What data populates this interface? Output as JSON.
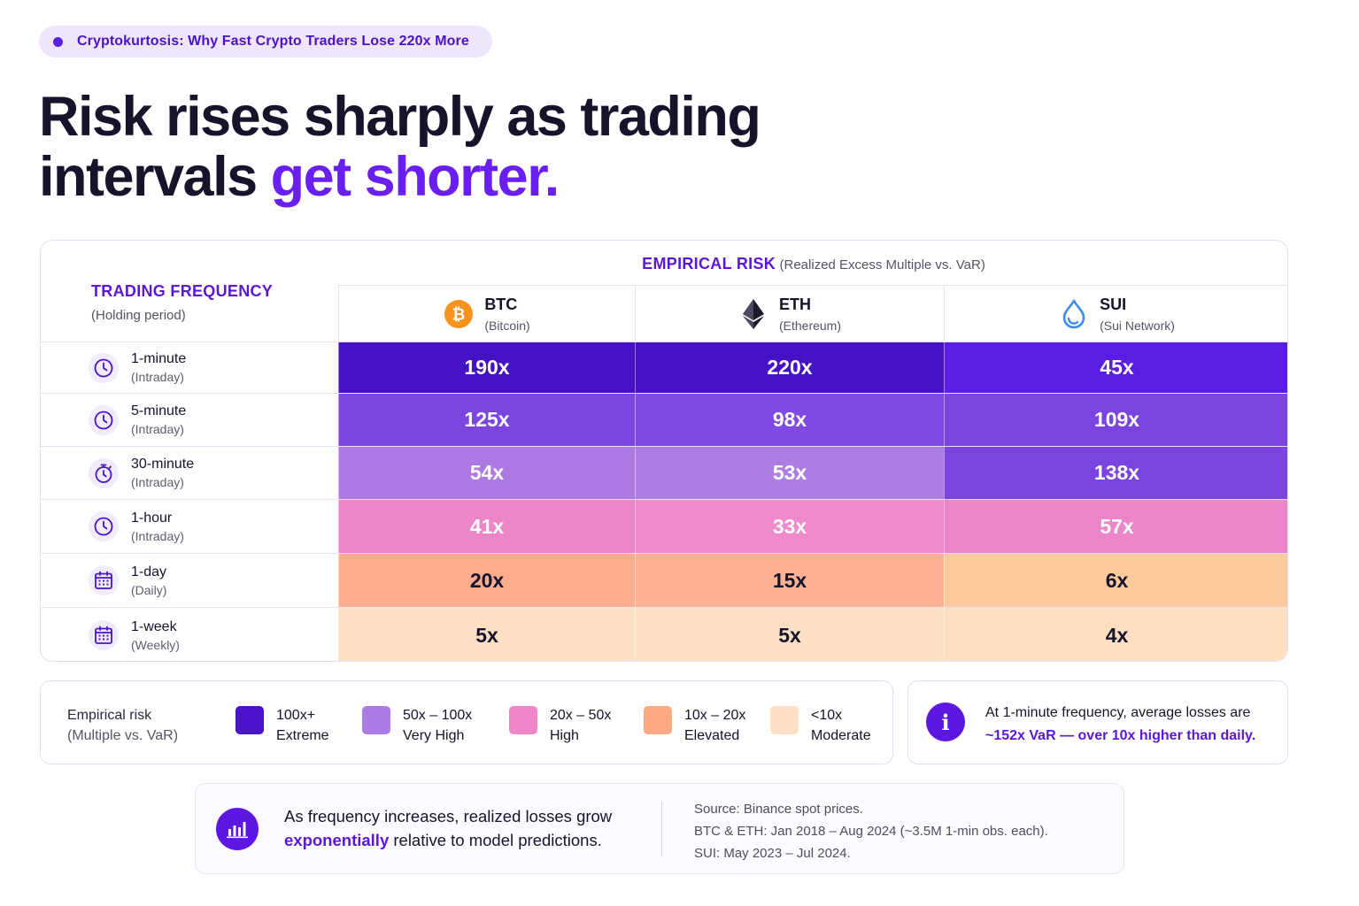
{
  "pill": {
    "label": "Cryptokurtosis: Why Fast Crypto Traders Lose 220x More"
  },
  "headline": {
    "line1": "Risk rises sharply as trading",
    "line2_plain": "intervals",
    "line2_accent": "get shorter."
  },
  "table": {
    "freq_title": "TRADING FREQUENCY",
    "freq_sub": "(Holding period)",
    "risk_title": "EMPIRICAL RISK",
    "risk_sub": "(Realized Excess Multiple vs. VaR)",
    "coins": [
      {
        "symbol": "BTC",
        "name": "(Bitcoin)",
        "icon": "bitcoin-icon",
        "color": "#f7931a"
      },
      {
        "symbol": "ETH",
        "name": "(Ethereum)",
        "icon": "ethereum-icon",
        "color": "#1c1b2a"
      },
      {
        "symbol": "SUI",
        "name": "(Sui Network)",
        "icon": "sui-drop-icon",
        "color": "#3d8bf2"
      }
    ],
    "rows": [
      {
        "name": "1-minute",
        "sub": "(Intraday)",
        "icon": "clock-icon",
        "cells": [
          {
            "value": "190x",
            "bg": "#4412c4",
            "fg": "#ffffff"
          },
          {
            "value": "220x",
            "bg": "#4412c4",
            "fg": "#ffffff"
          },
          {
            "value": "45x",
            "bg": "#5a1de2",
            "fg": "#ffffff"
          }
        ]
      },
      {
        "name": "5-minute",
        "sub": "(Intraday)",
        "icon": "clock-icon",
        "cells": [
          {
            "value": "125x",
            "bg": "#7b45e0",
            "fg": "#ffffff"
          },
          {
            "value": "98x",
            "bg": "#7e4ae1",
            "fg": "#ffffff"
          },
          {
            "value": "109x",
            "bg": "#7a45df",
            "fg": "#ffffff"
          }
        ]
      },
      {
        "name": "30-minute",
        "sub": "(Intraday)",
        "icon": "stopwatch-icon",
        "cells": [
          {
            "value": "54x",
            "bg": "#ac7ae2",
            "fg": "#ffffff"
          },
          {
            "value": "53x",
            "bg": "#ae7de2",
            "fg": "#ffffff"
          },
          {
            "value": "138x",
            "bg": "#7a45df",
            "fg": "#ffffff"
          }
        ]
      },
      {
        "name": "1-hour",
        "sub": "(Intraday)",
        "icon": "clock-icon",
        "cells": [
          {
            "value": "41x",
            "bg": "#ec86c8",
            "fg": "#ffffff"
          },
          {
            "value": "33x",
            "bg": "#ef8bcb",
            "fg": "#ffffff"
          },
          {
            "value": "57x",
            "bg": "#ec86c8",
            "fg": "#ffffff"
          }
        ]
      },
      {
        "name": "1-day",
        "sub": "(Daily)",
        "icon": "calendar-icon",
        "cells": [
          {
            "value": "20x",
            "bg": "#fdac8e",
            "fg": "#16142b"
          },
          {
            "value": "15x",
            "bg": "#feb294",
            "fg": "#16142b"
          },
          {
            "value": "6x",
            "bg": "#fdca9e",
            "fg": "#16142b"
          }
        ]
      },
      {
        "name": "1-week",
        "sub": "(Weekly)",
        "icon": "calendar-icon",
        "cells": [
          {
            "value": "5x",
            "bg": "#fee0c4",
            "fg": "#16142b"
          },
          {
            "value": "5x",
            "bg": "#fee0c4",
            "fg": "#16142b"
          },
          {
            "value": "4x",
            "bg": "#fedfc2",
            "fg": "#16142b"
          }
        ]
      }
    ]
  },
  "legend": {
    "label": "Empirical risk",
    "label_sub": "(Multiple vs. VaR)",
    "items": [
      {
        "range": "100x+",
        "tier": "Extreme",
        "color": "#4a12c9"
      },
      {
        "range": "50x – 100x",
        "tier": "Very High",
        "color": "#ad7be4"
      },
      {
        "range": "20x – 50x",
        "tier": "High",
        "color": "#ee86c8"
      },
      {
        "range": "10x – 20x",
        "tier": "Elevated",
        "color": "#fdaa84"
      },
      {
        "range": "<10x",
        "tier": "Moderate",
        "color": "#fee0c6"
      }
    ]
  },
  "info": {
    "text": "At 1-minute frequency, average losses are",
    "highlight": "~152x VaR — over 10x higher than daily."
  },
  "bottom": {
    "text_line1": "As frequency increases, realized losses grow",
    "text_accent": "exponentially",
    "text_line2_rest": " relative to model predictions.",
    "source_lines": [
      "Source: Binance spot prices.",
      "BTC & ETH: Jan 2018 – Aug 2024 (~3.5M 1-min obs. each).",
      "SUI: May 2023 – Jul 2024."
    ]
  }
}
